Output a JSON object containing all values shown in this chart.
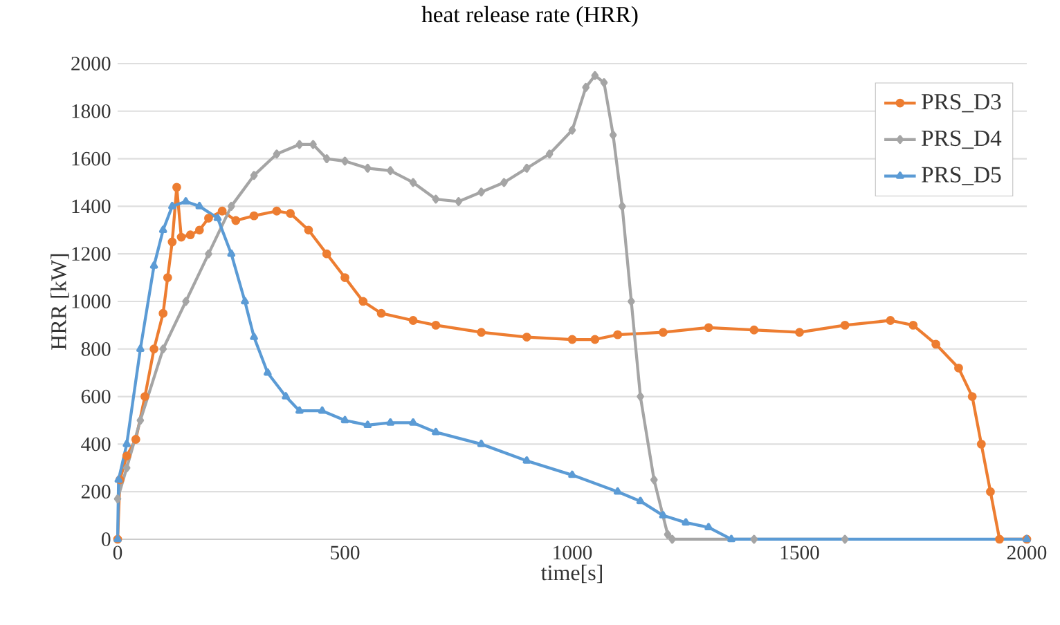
{
  "chart_data": {
    "type": "line",
    "title": "heat release rate (HRR)",
    "xlabel": "time[s]",
    "ylabel": "HRR [kW]",
    "xlim": [
      0,
      2000
    ],
    "ylim": [
      0,
      2000
    ],
    "xticks": [
      0,
      500,
      1000,
      1500,
      2000
    ],
    "yticks": [
      0,
      200,
      400,
      600,
      800,
      1000,
      1200,
      1400,
      1600,
      1800,
      2000
    ],
    "grid": "y",
    "legend": "right",
    "line_style": "solid",
    "series": [
      {
        "name": "PRS_D3",
        "color": "#ed7d31",
        "marker": "circle",
        "x": [
          0,
          5,
          20,
          40,
          60,
          80,
          100,
          110,
          120,
          130,
          140,
          160,
          180,
          200,
          230,
          260,
          300,
          350,
          380,
          420,
          460,
          500,
          540,
          580,
          650,
          700,
          800,
          900,
          1000,
          1050,
          1100,
          1200,
          1300,
          1400,
          1500,
          1600,
          1700,
          1750,
          1800,
          1850,
          1880,
          1900,
          1920,
          1940,
          2000
        ],
        "values": [
          0,
          250,
          350,
          420,
          600,
          800,
          950,
          1100,
          1250,
          1480,
          1270,
          1280,
          1300,
          1350,
          1380,
          1340,
          1360,
          1380,
          1370,
          1300,
          1200,
          1100,
          1000,
          950,
          920,
          900,
          870,
          850,
          840,
          840,
          860,
          870,
          890,
          880,
          870,
          900,
          920,
          900,
          820,
          720,
          600,
          400,
          200,
          0,
          0
        ]
      },
      {
        "name": "PRS_D4",
        "color": "#a5a5a5",
        "marker": "diamond",
        "x": [
          0,
          20,
          50,
          100,
          150,
          200,
          250,
          300,
          350,
          400,
          430,
          460,
          500,
          550,
          600,
          650,
          700,
          750,
          800,
          850,
          900,
          950,
          1000,
          1030,
          1050,
          1070,
          1090,
          1110,
          1130,
          1150,
          1180,
          1210,
          1220,
          1400,
          1600
        ],
        "values": [
          170,
          300,
          500,
          800,
          1000,
          1200,
          1400,
          1530,
          1620,
          1660,
          1660,
          1600,
          1590,
          1560,
          1550,
          1500,
          1430,
          1420,
          1460,
          1500,
          1560,
          1620,
          1720,
          1900,
          1950,
          1920,
          1700,
          1400,
          1000,
          600,
          250,
          20,
          0,
          0,
          0
        ]
      },
      {
        "name": "PRS_D5",
        "color": "#5b9bd5",
        "marker": "triangle",
        "x": [
          0,
          2,
          20,
          50,
          80,
          100,
          120,
          150,
          180,
          220,
          250,
          280,
          300,
          330,
          370,
          400,
          450,
          500,
          550,
          600,
          650,
          700,
          800,
          900,
          1000,
          1100,
          1150,
          1200,
          1250,
          1300,
          1350,
          2000
        ],
        "values": [
          0,
          250,
          400,
          800,
          1150,
          1300,
          1400,
          1420,
          1400,
          1350,
          1200,
          1000,
          850,
          700,
          600,
          540,
          540,
          500,
          480,
          490,
          490,
          450,
          400,
          330,
          270,
          200,
          160,
          100,
          70,
          50,
          0,
          0
        ]
      }
    ]
  }
}
